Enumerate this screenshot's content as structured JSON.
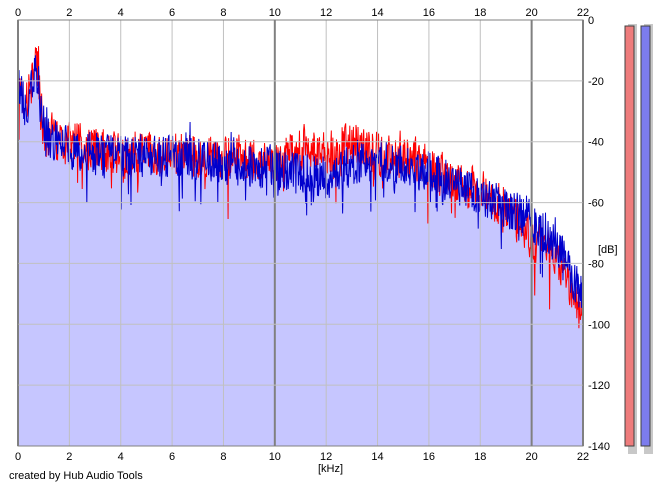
{
  "chart_data": {
    "type": "area",
    "title": "",
    "xlabel": "[kHz]",
    "ylabel": "[dB]",
    "xlim": [
      0,
      22
    ],
    "ylim": [
      -140,
      0
    ],
    "x_ticks": [
      "0",
      "2",
      "4",
      "6",
      "8",
      "10",
      "12",
      "14",
      "16",
      "18",
      "20",
      "22"
    ],
    "y_ticks": [
      "0",
      "-20",
      "-40",
      "-60",
      "-80",
      "-100",
      "-120",
      "-140"
    ],
    "grid": true,
    "legend": "none",
    "series": [
      {
        "color": "#ff0000",
        "x": [
          0,
          0.3,
          0.7,
          1,
          2,
          3,
          4,
          5,
          6,
          7,
          8,
          9,
          10,
          11,
          12,
          13,
          14,
          15,
          16,
          17,
          18,
          19,
          20,
          21,
          22
        ],
        "values": [
          -18,
          -28,
          -12,
          -38,
          -40,
          -42,
          -44,
          -43,
          -44,
          -45,
          -45,
          -46,
          -47,
          -42,
          -44,
          -40,
          -44,
          -44,
          -48,
          -52,
          -56,
          -62,
          -72,
          -78,
          -100
        ]
      },
      {
        "color": "#0000cc",
        "x": [
          0,
          0.3,
          0.7,
          1,
          2,
          3,
          4,
          5,
          6,
          7,
          8,
          9,
          10,
          11,
          12,
          13,
          14,
          15,
          16,
          17,
          18,
          19,
          20,
          21,
          22
        ],
        "values": [
          -18,
          -30,
          -14,
          -38,
          -42,
          -44,
          -45,
          -44,
          -45,
          -46,
          -47,
          -48,
          -49,
          -50,
          -52,
          -48,
          -46,
          -48,
          -50,
          -54,
          -58,
          -62,
          -66,
          -74,
          -92
        ]
      }
    ],
    "meters": [
      {
        "color": "#ee7c7c",
        "value": 0
      },
      {
        "color": "#7c7cee",
        "value": 0
      }
    ]
  },
  "credit": "created by Hub Audio Tools"
}
